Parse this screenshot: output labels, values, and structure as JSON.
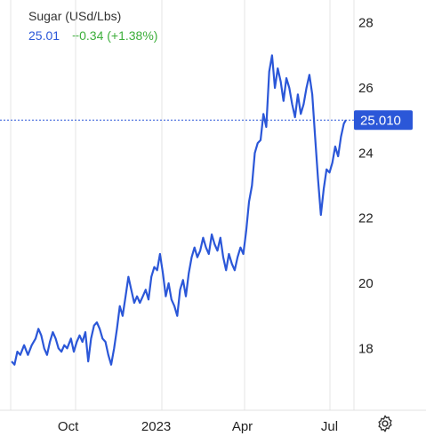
{
  "header": {
    "title": "Sugar (USd/Lbs)",
    "price": "25.01",
    "change": "+0.34 (+1.38%)"
  },
  "colors": {
    "line": "#2b57d8",
    "change_positive": "#3cae3a",
    "grid": "#e6e6e6"
  },
  "settings_icon": "gear-icon",
  "chart_data": {
    "type": "line",
    "title": "Sugar (USd/Lbs)",
    "xlabel": "",
    "ylabel": "",
    "ylim": [
      16.1,
      28.7
    ],
    "y_ticks": [
      18,
      20,
      22,
      24,
      26,
      28
    ],
    "x_tick_labels": [
      "Oct",
      "2023",
      "Apr",
      "Jul"
    ],
    "x_tick_dates": [
      "2022-10-01",
      "2023-01-01",
      "2023-04-01",
      "2023-07-01"
    ],
    "x_range": [
      "2022-08-02",
      "2023-07-21"
    ],
    "last_value_label": "25.010",
    "grid": "vertical",
    "series": [
      {
        "values": [
          [
            "2022-08-03",
            17.6
          ],
          [
            "2022-08-06",
            17.5
          ],
          [
            "2022-08-09",
            17.9
          ],
          [
            "2022-08-12",
            17.8
          ],
          [
            "2022-08-16",
            18.1
          ],
          [
            "2022-08-20",
            17.8
          ],
          [
            "2022-08-24",
            18.1
          ],
          [
            "2022-08-28",
            18.3
          ],
          [
            "2022-08-31",
            18.6
          ],
          [
            "2022-09-03",
            18.4
          ],
          [
            "2022-09-06",
            18.0
          ],
          [
            "2022-09-09",
            17.8
          ],
          [
            "2022-09-12",
            18.2
          ],
          [
            "2022-09-15",
            18.5
          ],
          [
            "2022-09-18",
            18.3
          ],
          [
            "2022-09-21",
            18.0
          ],
          [
            "2022-09-24",
            17.9
          ],
          [
            "2022-09-27",
            18.1
          ],
          [
            "2022-09-30",
            18.0
          ],
          [
            "2022-10-04",
            18.3
          ],
          [
            "2022-10-07",
            17.9
          ],
          [
            "2022-10-10",
            18.2
          ],
          [
            "2022-10-13",
            18.4
          ],
          [
            "2022-10-16",
            18.2
          ],
          [
            "2022-10-19",
            18.5
          ],
          [
            "2022-10-22",
            17.6
          ],
          [
            "2022-10-25",
            18.3
          ],
          [
            "2022-10-28",
            18.7
          ],
          [
            "2022-10-31",
            18.8
          ],
          [
            "2022-11-03",
            18.6
          ],
          [
            "2022-11-06",
            18.3
          ],
          [
            "2022-11-09",
            18.2
          ],
          [
            "2022-11-12",
            17.8
          ],
          [
            "2022-11-15",
            17.5
          ],
          [
            "2022-11-18",
            18.0
          ],
          [
            "2022-11-21",
            18.6
          ],
          [
            "2022-11-24",
            19.3
          ],
          [
            "2022-11-27",
            19.0
          ],
          [
            "2022-11-30",
            19.6
          ],
          [
            "2022-12-03",
            20.2
          ],
          [
            "2022-12-06",
            19.8
          ],
          [
            "2022-12-09",
            19.4
          ],
          [
            "2022-12-12",
            19.6
          ],
          [
            "2022-12-15",
            19.4
          ],
          [
            "2022-12-18",
            19.6
          ],
          [
            "2022-12-21",
            19.8
          ],
          [
            "2022-12-24",
            19.5
          ],
          [
            "2022-12-27",
            20.2
          ],
          [
            "2022-12-30",
            20.5
          ],
          [
            "2023-01-02",
            20.4
          ],
          [
            "2023-01-05",
            20.9
          ],
          [
            "2023-01-08",
            20.3
          ],
          [
            "2023-01-11",
            19.6
          ],
          [
            "2023-01-14",
            20.0
          ],
          [
            "2023-01-17",
            19.5
          ],
          [
            "2023-01-20",
            19.3
          ],
          [
            "2023-01-23",
            19.0
          ],
          [
            "2023-01-26",
            19.8
          ],
          [
            "2023-01-29",
            20.1
          ],
          [
            "2023-02-01",
            19.6
          ],
          [
            "2023-02-04",
            20.3
          ],
          [
            "2023-02-07",
            20.8
          ],
          [
            "2023-02-10",
            21.1
          ],
          [
            "2023-02-13",
            20.8
          ],
          [
            "2023-02-16",
            21.0
          ],
          [
            "2023-02-19",
            21.4
          ],
          [
            "2023-02-22",
            21.1
          ],
          [
            "2023-02-25",
            20.9
          ],
          [
            "2023-02-28",
            21.5
          ],
          [
            "2023-03-03",
            21.2
          ],
          [
            "2023-03-06",
            21.0
          ],
          [
            "2023-03-09",
            21.4
          ],
          [
            "2023-03-12",
            20.8
          ],
          [
            "2023-03-15",
            20.4
          ],
          [
            "2023-03-18",
            20.9
          ],
          [
            "2023-03-21",
            20.6
          ],
          [
            "2023-03-24",
            20.4
          ],
          [
            "2023-03-27",
            20.8
          ],
          [
            "2023-03-30",
            21.1
          ],
          [
            "2023-04-02",
            20.9
          ],
          [
            "2023-04-05",
            21.6
          ],
          [
            "2023-04-08",
            22.5
          ],
          [
            "2023-04-11",
            23.0
          ],
          [
            "2023-04-14",
            24.0
          ],
          [
            "2023-04-17",
            24.3
          ],
          [
            "2023-04-20",
            24.4
          ],
          [
            "2023-04-23",
            25.2
          ],
          [
            "2023-04-26",
            24.8
          ],
          [
            "2023-04-29",
            26.5
          ],
          [
            "2023-05-02",
            27.0
          ],
          [
            "2023-05-05",
            26.0
          ],
          [
            "2023-05-08",
            26.6
          ],
          [
            "2023-05-11",
            26.2
          ],
          [
            "2023-05-14",
            25.6
          ],
          [
            "2023-05-17",
            26.3
          ],
          [
            "2023-05-20",
            26.0
          ],
          [
            "2023-05-23",
            25.5
          ],
          [
            "2023-05-26",
            25.1
          ],
          [
            "2023-05-29",
            25.8
          ],
          [
            "2023-06-01",
            25.2
          ],
          [
            "2023-06-04",
            25.5
          ],
          [
            "2023-06-07",
            26.0
          ],
          [
            "2023-06-10",
            26.4
          ],
          [
            "2023-06-13",
            25.8
          ],
          [
            "2023-06-16",
            24.5
          ],
          [
            "2023-06-19",
            23.2
          ],
          [
            "2023-06-22",
            22.1
          ],
          [
            "2023-06-25",
            22.9
          ],
          [
            "2023-06-28",
            23.5
          ],
          [
            "2023-07-01",
            23.4
          ],
          [
            "2023-07-04",
            23.7
          ],
          [
            "2023-07-07",
            24.2
          ],
          [
            "2023-07-10",
            23.9
          ],
          [
            "2023-07-13",
            24.5
          ],
          [
            "2023-07-16",
            24.9
          ],
          [
            "2023-07-18",
            25.01
          ]
        ]
      }
    ]
  }
}
